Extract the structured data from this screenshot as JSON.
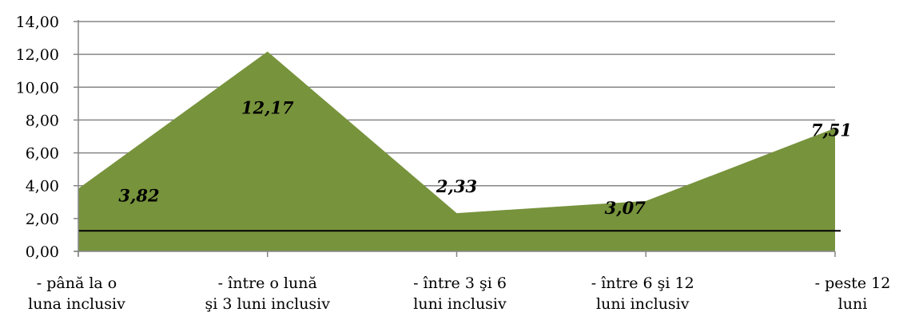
{
  "chart_data": {
    "type": "area",
    "categories": [
      [
        "- până la o",
        "luna inclusiv"
      ],
      [
        "- între o lună",
        "şi 3 luni inclusiv"
      ],
      [
        "- între 3 şi 6",
        "luni inclusiv"
      ],
      [
        "- între 6 şi 12",
        "luni inclusiv"
      ],
      [
        "- peste 12",
        "luni"
      ]
    ],
    "series": [
      {
        "values": [
          3.82,
          12.17,
          2.33,
          3.07,
          7.51
        ],
        "color": "#77933C"
      }
    ],
    "data_labels": [
      "3,82",
      "12,17",
      "2,33",
      "3,07",
      "7,51"
    ],
    "y_ticks": [
      "0,00",
      "2,00",
      "4,00",
      "6,00",
      "8,00",
      "10,00",
      "12,00",
      "14,00"
    ],
    "ylim": [
      0,
      14
    ],
    "reference_line": 1.25,
    "grid": true,
    "title": "",
    "xlabel": "",
    "ylabel": ""
  }
}
